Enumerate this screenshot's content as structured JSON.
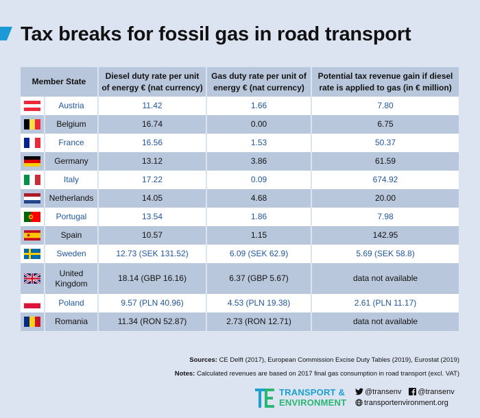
{
  "title": "Tax breaks for fossil gas in road transport",
  "colors": {
    "header_bg": "#b9c7dd",
    "light_text": "#20569c",
    "accent": "#1b9ad6",
    "page_bg": "#dce4f2"
  },
  "chart_data": {
    "type": "table",
    "columns": [
      "Member State",
      "Diesel duty rate per unit of energy € (nat currency)",
      "Gas duty rate per unit of energy € (nat currency)",
      "Potential tax revenue gain if diesel rate is applied to gas (in € million)"
    ],
    "rows": [
      {
        "flag": "austria-flag",
        "state": "Austria",
        "diesel": "11.42",
        "gas": "1.66",
        "gain": "7.80"
      },
      {
        "flag": "belgium-flag",
        "state": "Belgium",
        "diesel": "16.74",
        "gas": "0.00",
        "gain": "6.75"
      },
      {
        "flag": "france-flag",
        "state": "France",
        "diesel": "16.56",
        "gas": "1.53",
        "gain": "50.37"
      },
      {
        "flag": "germany-flag",
        "state": "Germany",
        "diesel": "13.12",
        "gas": "3.86",
        "gain": "61.59"
      },
      {
        "flag": "italy-flag",
        "state": "Italy",
        "diesel": "17.22",
        "gas": "0.09",
        "gain": "674.92"
      },
      {
        "flag": "netherlands-flag",
        "state": "Netherlands",
        "diesel": "14.05",
        "gas": "4.68",
        "gain": "20.00"
      },
      {
        "flag": "portugal-flag",
        "state": "Portugal",
        "diesel": "13.54",
        "gas": "1.86",
        "gain": "7.98"
      },
      {
        "flag": "spain-flag",
        "state": "Spain",
        "diesel": "10.57",
        "gas": "1.15",
        "gain": "142.95"
      },
      {
        "flag": "sweden-flag",
        "state": "Sweden",
        "diesel": "12.73 (SEK 131.52)",
        "gas": "6.09 (SEK 62.9)",
        "gain": "5.69 (SEK 58.8)"
      },
      {
        "flag": "united-kingdom-flag",
        "state": "United Kingdom",
        "diesel": "18.14 (GBP 16.16)",
        "gas": "6.37 (GBP 5.67)",
        "gain": "data not available"
      },
      {
        "flag": "poland-flag",
        "state": "Poland",
        "diesel": "9.57 (PLN 40.96)",
        "gas": "4.53 (PLN 19.38)",
        "gain": "2.61 (PLN 11.17)"
      },
      {
        "flag": "romania-flag",
        "state": "Romania",
        "diesel": "11.34 (RON 52.87)",
        "gas": "2.73 (RON 12.71)",
        "gain": "data not available"
      }
    ]
  },
  "footer": {
    "sources_label": "Sources:",
    "sources_text": "CE Delft (2017), European Commission Excise Duty Tables (2019), Eurostat (2019)",
    "notes_label": "Notes:",
    "notes_text": "Calculated revenues are based on 2017 final gas consumption in road transport (excl. VAT)",
    "logo_line1": "TRANSPORT &",
    "logo_line2": "ENVIRONMENT",
    "twitter": "@transenv",
    "facebook": "@transenv",
    "website": "transportenvironment.org"
  }
}
